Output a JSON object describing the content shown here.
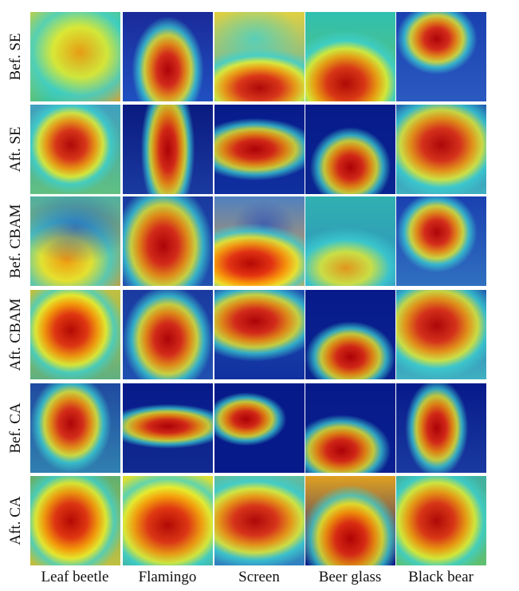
{
  "rows": [
    {
      "label": "Bef. SE"
    },
    {
      "label": "Aft. SE"
    },
    {
      "label": "Bef. CBAM"
    },
    {
      "label": "Aft. CBAM"
    },
    {
      "label": "Bef. CA"
    },
    {
      "label": "Aft. CA"
    }
  ],
  "columns": [
    {
      "label": "Leaf beetle"
    },
    {
      "label": "Flamingo"
    },
    {
      "label": "Screen"
    },
    {
      "label": "Beer glass"
    },
    {
      "label": "Black bear"
    }
  ],
  "colors": {
    "heat_hot": "#b00000",
    "heat_warm": "#ff9900",
    "heat_mid": "#f0f020",
    "heat_cool": "#30d0d0",
    "heat_cold": "#071a8a"
  }
}
